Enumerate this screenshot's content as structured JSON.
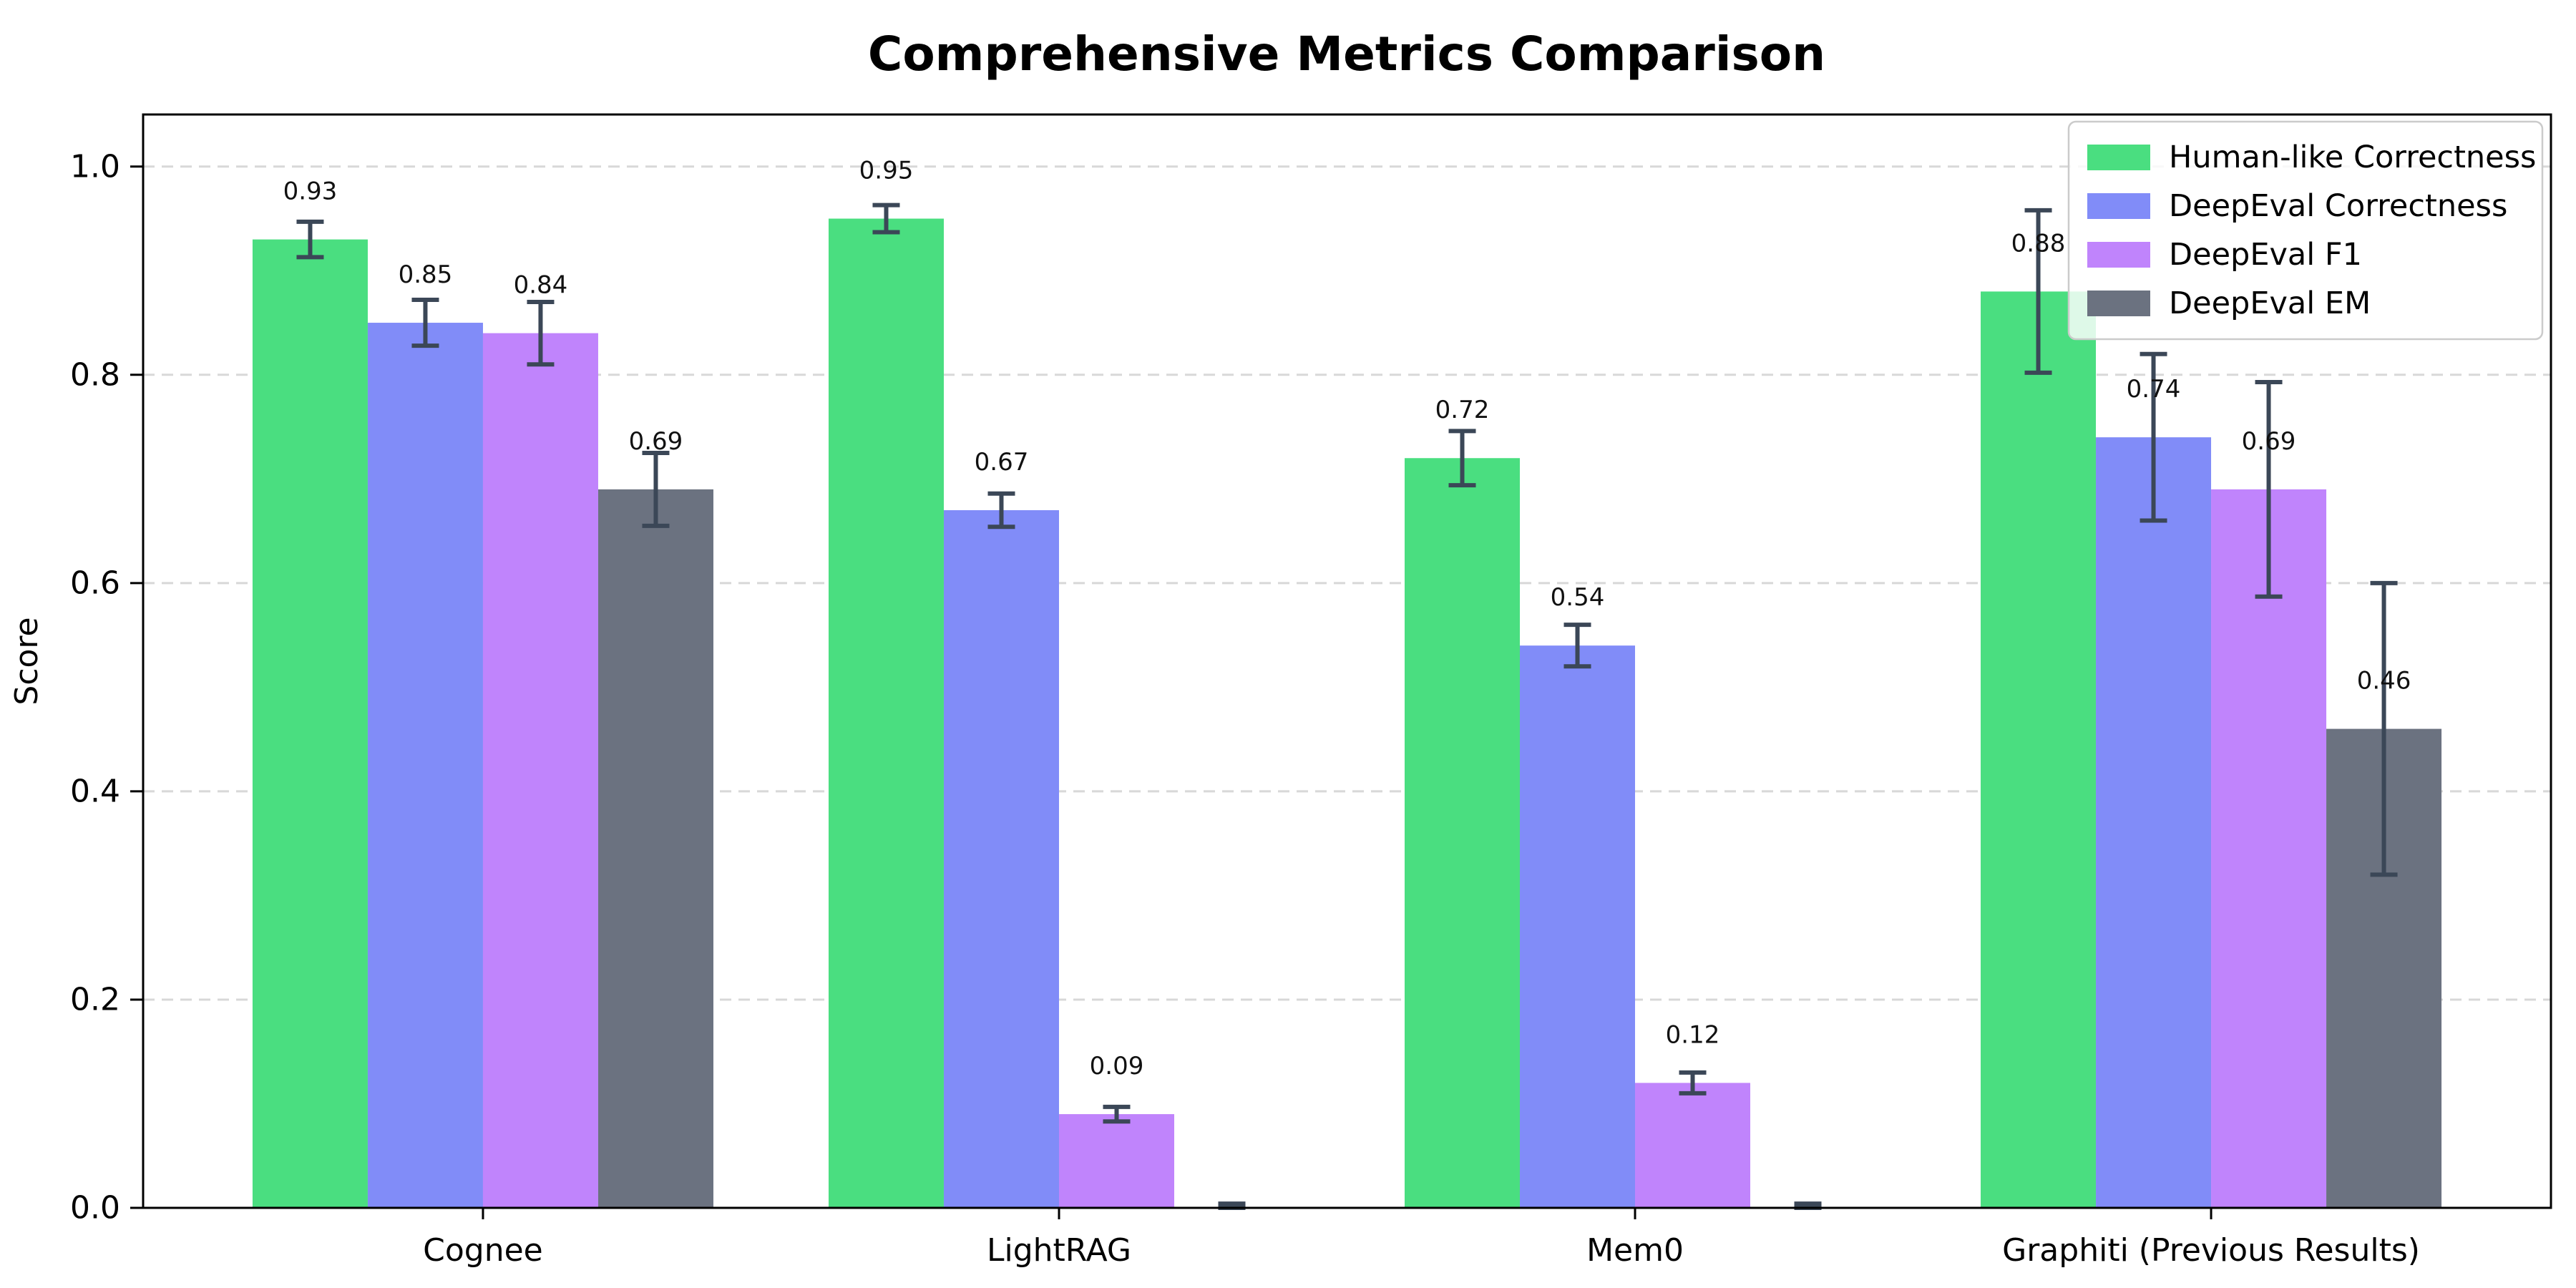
{
  "title": "Comprehensive Metrics Comparison",
  "ylabel": "Score",
  "chart_data": {
    "type": "bar",
    "categories": [
      "Cognee",
      "LightRAG",
      "Mem0",
      "Graphiti (Previous Results)"
    ],
    "series": [
      {
        "name": "Human-like Correctness",
        "color": "#4ade80",
        "values": [
          0.93,
          0.95,
          0.72,
          0.88
        ],
        "errors": [
          0.017,
          0.013,
          0.026,
          0.078
        ],
        "labels": [
          "0.93",
          "0.95",
          "0.72",
          "0.88"
        ]
      },
      {
        "name": "DeepEval Correctness",
        "color": "#818cf8",
        "values": [
          0.85,
          0.67,
          0.54,
          0.74
        ],
        "errors": [
          0.022,
          0.016,
          0.02,
          0.08
        ],
        "labels": [
          "0.85",
          "0.67",
          "0.54",
          "0.74"
        ]
      },
      {
        "name": "DeepEval F1",
        "color": "#c084fc",
        "values": [
          0.84,
          0.09,
          0.12,
          0.69
        ],
        "errors": [
          0.03,
          0.007,
          0.01,
          0.103
        ],
        "labels": [
          "0.84",
          "0.09",
          "0.12",
          "0.69"
        ]
      },
      {
        "name": "DeepEval EM",
        "color": "#6b7280",
        "values": [
          0.69,
          0.0,
          0.0,
          0.46
        ],
        "errors": [
          0.035,
          0.004,
          0.004,
          0.14
        ],
        "labels": [
          "0.69",
          "",
          "",
          "0.46"
        ]
      }
    ],
    "ylim": [
      0,
      1.05
    ],
    "yticks": [
      "0.0",
      "0.2",
      "0.4",
      "0.6",
      "0.8",
      "1.0"
    ],
    "grid": "horizontal-dashed",
    "legend_position": "upper right"
  },
  "style": {
    "background": "#ffffff",
    "axis_color": "#000000",
    "grid_color": "#d8d8d8",
    "error_bar_color": "#3b4757",
    "legend_border_color": "#cbcbcb",
    "text_color": "#000000",
    "value_label_color": "#111111"
  }
}
